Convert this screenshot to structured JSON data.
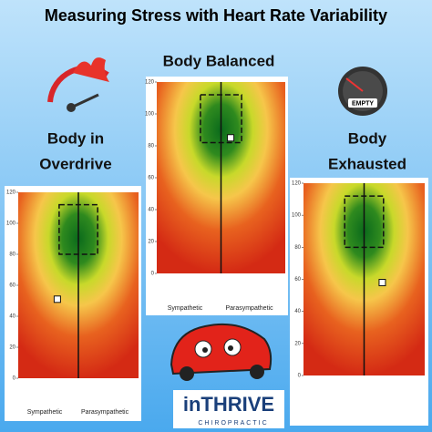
{
  "header": {
    "title": "Measuring Stress with Heart Rate Variability"
  },
  "labels": {
    "balanced": "Body Balanced",
    "overdrive": [
      "Body in",
      "Overdrive"
    ],
    "exhausted": [
      "Body",
      "Exhausted"
    ],
    "gauge": "EMPTY"
  },
  "logo": {
    "name": "inTHRIVE",
    "tagline": "CHIROPRACTIC"
  },
  "chart_data": [
    {
      "type": "scatter",
      "x_labels": [
        "Sympathetic",
        "Parasympathetic"
      ],
      "ylim": [
        0,
        120
      ],
      "yticks": [
        0,
        20,
        40,
        60,
        80,
        100,
        120
      ],
      "xlim": [
        -1,
        1
      ],
      "target": [
        80,
        112
      ],
      "series": [
        {
          "color": "#ffffff",
          "x": [
            -0.35
          ],
          "values": [
            51
          ]
        }
      ]
    },
    {
      "type": "scatter",
      "x_labels": [
        "Sympathetic",
        "Parasympathetic"
      ],
      "ylim": [
        0,
        120
      ],
      "yticks": [
        0,
        20,
        40,
        60,
        80,
        100,
        120
      ],
      "xlim": [
        -1,
        1
      ],
      "target": [
        82,
        112
      ],
      "series": [
        {
          "color": "#ffffff",
          "x": [
            0.15
          ],
          "values": [
            85
          ]
        }
      ]
    },
    {
      "type": "scatter",
      "ylim": [
        0,
        120
      ],
      "yticks": [
        0,
        20,
        40,
        60,
        80,
        100,
        120
      ],
      "xlim": [
        -1,
        1
      ],
      "target": [
        80,
        112
      ],
      "series": [
        {
          "color": "#ffffff",
          "x": [
            0.3
          ],
          "values": [
            58
          ]
        }
      ]
    }
  ]
}
